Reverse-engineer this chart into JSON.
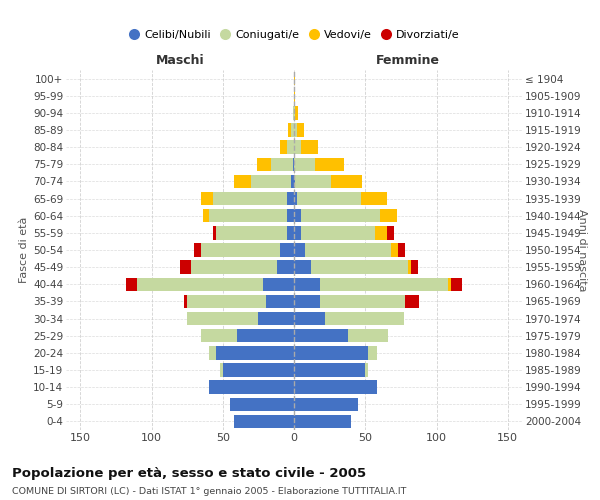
{
  "age_groups": [
    "0-4",
    "5-9",
    "10-14",
    "15-19",
    "20-24",
    "25-29",
    "30-34",
    "35-39",
    "40-44",
    "45-49",
    "50-54",
    "55-59",
    "60-64",
    "65-69",
    "70-74",
    "75-79",
    "80-84",
    "85-89",
    "90-94",
    "95-99",
    "100+"
  ],
  "birth_years": [
    "2000-2004",
    "1995-1999",
    "1990-1994",
    "1985-1989",
    "1980-1984",
    "1975-1979",
    "1970-1974",
    "1965-1969",
    "1960-1964",
    "1955-1959",
    "1950-1954",
    "1945-1949",
    "1940-1944",
    "1935-1939",
    "1930-1934",
    "1925-1929",
    "1920-1924",
    "1915-1919",
    "1910-1914",
    "1905-1909",
    "≤ 1904"
  ],
  "male_celibe": [
    42,
    45,
    60,
    50,
    55,
    40,
    25,
    20,
    22,
    12,
    10,
    5,
    5,
    5,
    2,
    1,
    0,
    0,
    0,
    0,
    0
  ],
  "male_coniugato": [
    0,
    0,
    0,
    2,
    5,
    25,
    50,
    55,
    88,
    60,
    55,
    50,
    55,
    52,
    28,
    15,
    5,
    2,
    1,
    0,
    0
  ],
  "male_vedovo": [
    0,
    0,
    0,
    0,
    0,
    0,
    0,
    0,
    0,
    0,
    0,
    0,
    4,
    8,
    12,
    10,
    5,
    2,
    0,
    0,
    0
  ],
  "male_divorziato": [
    0,
    0,
    0,
    0,
    0,
    0,
    0,
    2,
    8,
    8,
    5,
    2,
    0,
    0,
    0,
    0,
    0,
    0,
    0,
    0,
    0
  ],
  "female_celibe": [
    40,
    45,
    58,
    50,
    52,
    38,
    22,
    18,
    18,
    12,
    8,
    5,
    5,
    2,
    1,
    0,
    0,
    0,
    0,
    0,
    0
  ],
  "female_coniugato": [
    0,
    0,
    0,
    2,
    6,
    28,
    55,
    60,
    90,
    68,
    60,
    52,
    55,
    45,
    25,
    15,
    5,
    2,
    1,
    0,
    0
  ],
  "female_vedovo": [
    0,
    0,
    0,
    0,
    0,
    0,
    0,
    0,
    2,
    2,
    5,
    8,
    12,
    18,
    22,
    20,
    12,
    5,
    2,
    1,
    1
  ],
  "female_divorziato": [
    0,
    0,
    0,
    0,
    0,
    0,
    0,
    10,
    8,
    5,
    5,
    5,
    0,
    0,
    0,
    0,
    0,
    0,
    0,
    0,
    0
  ],
  "colors": {
    "celibe": "#4472c4",
    "coniugato": "#c5d9a0",
    "vedovo": "#ffc000",
    "divorziato": "#cc0000"
  },
  "title": "Popolazione per età, sesso e stato civile - 2005",
  "subtitle": "COMUNE DI SIRTORI (LC) - Dati ISTAT 1° gennaio 2005 - Elaborazione TUTTITALIA.IT",
  "xlabel_left": "Maschi",
  "xlabel_right": "Femmine",
  "ylabel_left": "Fasce di età",
  "ylabel_right": "Anni di nascita",
  "xlim": 160,
  "bg_color": "#ffffff",
  "grid_color": "#cccccc",
  "legend_labels": [
    "Celibi/Nubili",
    "Coniugati/e",
    "Vedovi/e",
    "Divorziati/e"
  ]
}
